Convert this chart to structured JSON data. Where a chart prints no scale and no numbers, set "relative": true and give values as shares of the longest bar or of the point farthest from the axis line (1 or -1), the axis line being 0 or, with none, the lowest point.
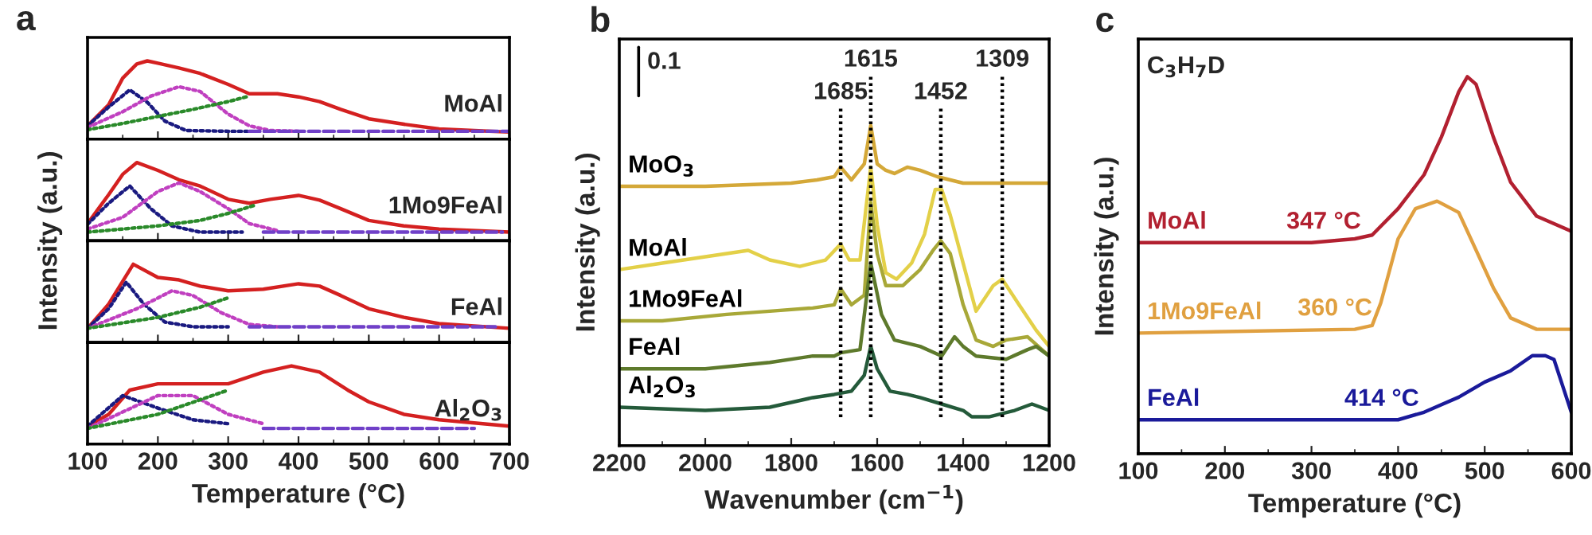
{
  "chart_data": [
    {
      "type": "line",
      "relative": true,
      "title": "a",
      "ylabel": "Intensity (a.u.)",
      "xlim": [
        100,
        700
      ],
      "xticks": [
        100,
        200,
        300,
        400,
        500,
        600,
        700
      ],
      "tick_labels": false,
      "annotations": [
        "MoAl"
      ],
      "series": [
        {
          "color": "#d42020",
          "line_style": "solid",
          "x": [
            100,
            130,
            150,
            170,
            185,
            200,
            230,
            260,
            300,
            330,
            370,
            400,
            430,
            460,
            500,
            550,
            600,
            650,
            700
          ],
          "values": [
            0.17,
            0.44,
            0.78,
            0.96,
            1.0,
            0.97,
            0.91,
            0.84,
            0.7,
            0.58,
            0.58,
            0.54,
            0.48,
            0.38,
            0.26,
            0.19,
            0.13,
            0.11,
            0.09
          ]
        },
        {
          "color": "#1a1a80",
          "line_style": "dotted",
          "x": [
            100,
            130,
            160,
            185,
            210,
            240,
            300,
            330
          ],
          "values": [
            0.17,
            0.41,
            0.63,
            0.47,
            0.23,
            0.11,
            0.1,
            0.1
          ]
        },
        {
          "color": "#c040c0",
          "line_style": "dotted",
          "x": [
            100,
            150,
            190,
            230,
            260,
            300,
            330,
            360,
            400
          ],
          "values": [
            0.15,
            0.35,
            0.55,
            0.67,
            0.61,
            0.32,
            0.17,
            0.11,
            0.1
          ]
        },
        {
          "color": "#2a8a2a",
          "line_style": "dotted",
          "x": [
            100,
            150,
            200,
            250,
            300,
            330
          ],
          "values": [
            0.12,
            0.2,
            0.29,
            0.38,
            0.48,
            0.55
          ]
        },
        {
          "color": "#7040c8",
          "line_style": "dashed",
          "x": [
            330,
            700
          ],
          "values": [
            0.1,
            0.1
          ]
        }
      ]
    },
    {
      "type": "line",
      "relative": true,
      "xlim": [
        100,
        700
      ],
      "xticks": [
        100,
        200,
        300,
        400,
        500,
        600,
        700
      ],
      "tick_labels": false,
      "annotations": [
        "1Mo9FeAl"
      ],
      "series": [
        {
          "color": "#d42020",
          "line_style": "solid",
          "x": [
            100,
            130,
            150,
            170,
            200,
            230,
            260,
            300,
            330,
            360,
            400,
            430,
            460,
            500,
            550,
            600,
            700
          ],
          "values": [
            0.22,
            0.59,
            0.85,
            1.0,
            0.9,
            0.78,
            0.7,
            0.53,
            0.48,
            0.53,
            0.58,
            0.52,
            0.41,
            0.26,
            0.19,
            0.15,
            0.11
          ]
        },
        {
          "color": "#1a1a80",
          "line_style": "dotted",
          "x": [
            100,
            130,
            160,
            190,
            220,
            260,
            320
          ],
          "values": [
            0.21,
            0.48,
            0.7,
            0.41,
            0.19,
            0.11,
            0.11
          ]
        },
        {
          "color": "#c040c0",
          "line_style": "dotted",
          "x": [
            100,
            150,
            200,
            230,
            260,
            300,
            330,
            370
          ],
          "values": [
            0.15,
            0.3,
            0.63,
            0.74,
            0.63,
            0.41,
            0.22,
            0.13
          ]
        },
        {
          "color": "#2a8a2a",
          "line_style": "dotted",
          "x": [
            100,
            200,
            260,
            300,
            340
          ],
          "values": [
            0.11,
            0.19,
            0.26,
            0.35,
            0.46
          ]
        },
        {
          "color": "#7040c8",
          "line_style": "dashed",
          "x": [
            350,
            690
          ],
          "values": [
            0.11,
            0.11
          ]
        }
      ]
    },
    {
      "type": "line",
      "relative": true,
      "xlim": [
        100,
        700
      ],
      "xticks": [
        100,
        200,
        300,
        400,
        500,
        600,
        700
      ],
      "tick_labels": false,
      "annotations": [
        "FeAl"
      ],
      "series": [
        {
          "color": "#d42020",
          "line_style": "solid",
          "x": [
            100,
            130,
            165,
            200,
            230,
            260,
            300,
            350,
            400,
            430,
            460,
            500,
            550,
            600,
            700
          ],
          "values": [
            0.18,
            0.49,
            1.0,
            0.83,
            0.8,
            0.72,
            0.66,
            0.68,
            0.75,
            0.72,
            0.6,
            0.43,
            0.32,
            0.24,
            0.18
          ]
        },
        {
          "color": "#1a1a80",
          "line_style": "dotted",
          "x": [
            100,
            130,
            155,
            180,
            210,
            250,
            300
          ],
          "values": [
            0.18,
            0.43,
            0.77,
            0.49,
            0.26,
            0.2,
            0.2
          ]
        },
        {
          "color": "#c040c0",
          "line_style": "dotted",
          "x": [
            100,
            170,
            220,
            250,
            290,
            330,
            370
          ],
          "values": [
            0.18,
            0.43,
            0.66,
            0.6,
            0.38,
            0.23,
            0.2
          ]
        },
        {
          "color": "#2a8a2a",
          "line_style": "dotted",
          "x": [
            100,
            200,
            260,
            300
          ],
          "values": [
            0.18,
            0.32,
            0.45,
            0.57
          ]
        },
        {
          "color": "#7040c8",
          "line_style": "dashed",
          "x": [
            330,
            680
          ],
          "values": [
            0.2,
            0.2
          ]
        }
      ]
    },
    {
      "type": "line",
      "relative": true,
      "xlabel": "Temperature (°C)",
      "xlim": [
        100,
        700
      ],
      "xticks": [
        100,
        200,
        300,
        400,
        500,
        600,
        700
      ],
      "tick_labels": "x",
      "annotations": [
        "Al$_{2}$O$_{3}$"
      ],
      "series": [
        {
          "color": "#d42020",
          "line_style": "solid",
          "x": [
            100,
            130,
            160,
            200,
            250,
            300,
            350,
            390,
            430,
            470,
            500,
            550,
            600,
            700
          ],
          "values": [
            0.23,
            0.38,
            0.69,
            0.77,
            0.77,
            0.77,
            0.92,
            1.0,
            0.92,
            0.69,
            0.54,
            0.38,
            0.31,
            0.23
          ]
        },
        {
          "color": "#1a1a80",
          "line_style": "dotted",
          "x": [
            100,
            150,
            200,
            250,
            300
          ],
          "values": [
            0.23,
            0.62,
            0.46,
            0.31,
            0.26
          ]
        },
        {
          "color": "#c040c0",
          "line_style": "dotted",
          "x": [
            100,
            200,
            250,
            300,
            350
          ],
          "values": [
            0.2,
            0.62,
            0.62,
            0.38,
            0.26
          ]
        },
        {
          "color": "#2a8a2a",
          "line_style": "dotted",
          "x": [
            100,
            200,
            300
          ],
          "values": [
            0.2,
            0.38,
            0.69
          ]
        },
        {
          "color": "#7040c8",
          "line_style": "dashed",
          "x": [
            350,
            650
          ],
          "values": [
            0.2,
            0.2
          ]
        }
      ]
    },
    {
      "type": "line",
      "relative": true,
      "title": "b",
      "xlabel": "Wavenumber (cm$^{−1}$)",
      "ylabel": "Intensity (a.u.)",
      "xlim": [
        2200,
        1200
      ],
      "xticks": [
        2200,
        2000,
        1800,
        1600,
        1400,
        1200
      ],
      "tick_labels": "x",
      "annotations": [
        "0.1"
      ],
      "ref_lines": [
        {
          "axis": "x",
          "value": 1685,
          "label": "1685",
          "line_style": "dotted"
        },
        {
          "axis": "x",
          "value": 1615,
          "label": "1615",
          "line_style": "dotted"
        },
        {
          "axis": "x",
          "value": 1452,
          "label": "1452",
          "line_style": "dotted"
        },
        {
          "axis": "x",
          "value": 1309,
          "label": "1309",
          "line_style": "dotted"
        }
      ],
      "series": [
        {
          "name": "MoO$_{3}$",
          "color": "#d4a838",
          "x": [
            2200,
            2000,
            1800,
            1740,
            1700,
            1685,
            1660,
            1630,
            1615,
            1600,
            1580,
            1560,
            1530,
            1500,
            1460,
            1400,
            1300,
            1200
          ],
          "values": [
            0.81,
            0.81,
            0.82,
            0.83,
            0.84,
            0.87,
            0.83,
            0.88,
            1.0,
            0.88,
            0.86,
            0.85,
            0.87,
            0.86,
            0.84,
            0.82,
            0.82,
            0.82
          ]
        },
        {
          "name": "MoAl",
          "color": "#e3d048",
          "x": [
            2200,
            2100,
            1950,
            1900,
            1850,
            1780,
            1720,
            1685,
            1665,
            1640,
            1615,
            1600,
            1580,
            1555,
            1520,
            1490,
            1465,
            1450,
            1430,
            1400,
            1370,
            1330,
            1309,
            1270,
            1230,
            1200
          ],
          "values": [
            0.55,
            0.57,
            0.6,
            0.61,
            0.58,
            0.56,
            0.58,
            0.63,
            0.58,
            0.58,
            0.87,
            0.69,
            0.54,
            0.52,
            0.57,
            0.66,
            0.8,
            0.8,
            0.72,
            0.57,
            0.42,
            0.5,
            0.52,
            0.44,
            0.36,
            0.31
          ]
        },
        {
          "name": "1Mo9FeAl",
          "color": "#a8a838",
          "x": [
            2200,
            2100,
            1950,
            1850,
            1750,
            1700,
            1685,
            1660,
            1630,
            1615,
            1600,
            1580,
            1540,
            1500,
            1470,
            1452,
            1430,
            1400,
            1370,
            1330,
            1300,
            1250,
            1200
          ],
          "values": [
            0.39,
            0.39,
            0.41,
            0.42,
            0.43,
            0.44,
            0.49,
            0.44,
            0.47,
            0.76,
            0.6,
            0.5,
            0.5,
            0.55,
            0.61,
            0.64,
            0.6,
            0.44,
            0.33,
            0.31,
            0.33,
            0.34,
            0.28
          ]
        },
        {
          "name": "FeAl",
          "color": "#5e7a2c",
          "x": [
            2200,
            2000,
            1850,
            1750,
            1700,
            1685,
            1640,
            1615,
            1590,
            1560,
            1500,
            1450,
            1420,
            1400,
            1370,
            1300,
            1250,
            1230,
            1200
          ],
          "values": [
            0.24,
            0.24,
            0.26,
            0.28,
            0.28,
            0.29,
            0.3,
            0.57,
            0.41,
            0.33,
            0.31,
            0.28,
            0.34,
            0.31,
            0.28,
            0.27,
            0.3,
            0.31,
            0.28
          ]
        },
        {
          "name": "Al$_{2}$O$_{3}$",
          "color": "#245a3a",
          "x": [
            2200,
            2000,
            1850,
            1750,
            1700,
            1660,
            1630,
            1615,
            1600,
            1570,
            1530,
            1500,
            1450,
            1400,
            1380,
            1340,
            1280,
            1240,
            1200
          ],
          "values": [
            0.12,
            0.11,
            0.12,
            0.15,
            0.16,
            0.17,
            0.22,
            0.31,
            0.24,
            0.17,
            0.16,
            0.15,
            0.13,
            0.11,
            0.09,
            0.09,
            0.11,
            0.13,
            0.11
          ]
        }
      ]
    },
    {
      "type": "line",
      "relative": true,
      "title": "c",
      "xlabel": "Temperature (°C)",
      "ylabel": "Intensity (a.u.)",
      "xlim": [
        100,
        600
      ],
      "xticks": [
        100,
        200,
        300,
        400,
        500,
        600
      ],
      "tick_labels": "x",
      "annotations": [
        "C$_{3}$H$_{7}$D",
        {
          "text": "347 °C",
          "x": 347,
          "y": 0.56
        },
        {
          "text": "360 °C",
          "x": 360,
          "y": 0.33
        },
        {
          "text": "414 °C",
          "x": 414,
          "y": 0.09
        }
      ],
      "series": [
        {
          "name": "MoAl",
          "color": "#b22030",
          "x": [
            100,
            300,
            350,
            370,
            400,
            430,
            450,
            470,
            480,
            490,
            510,
            530,
            560,
            600
          ],
          "values": [
            0.56,
            0.56,
            0.57,
            0.58,
            0.65,
            0.74,
            0.84,
            0.96,
            1.0,
            0.98,
            0.84,
            0.72,
            0.63,
            0.59
          ]
        },
        {
          "name": "1Mo9FeAl",
          "color": "#e0a040",
          "x": [
            100,
            350,
            370,
            380,
            400,
            420,
            445,
            470,
            490,
            510,
            530,
            560,
            600
          ],
          "values": [
            0.32,
            0.33,
            0.34,
            0.4,
            0.57,
            0.65,
            0.67,
            0.64,
            0.54,
            0.44,
            0.36,
            0.33,
            0.33
          ]
        },
        {
          "name": "FeAl",
          "color": "#1a1a9a",
          "x": [
            100,
            400,
            430,
            470,
            500,
            530,
            555,
            570,
            580,
            590,
            600
          ],
          "values": [
            0.09,
            0.09,
            0.11,
            0.15,
            0.19,
            0.22,
            0.26,
            0.26,
            0.25,
            0.18,
            0.11
          ]
        }
      ]
    }
  ]
}
